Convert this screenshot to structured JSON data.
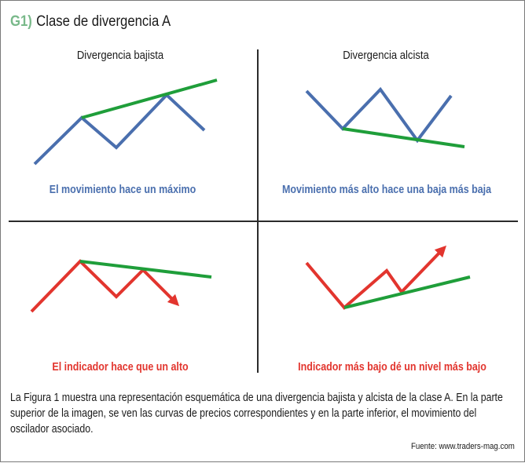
{
  "figure": {
    "number": "G1)",
    "title": "Clase de divergencia A"
  },
  "panels": {
    "bearish_price": {
      "heading": "Divergencia bajista",
      "caption": "El movimiento hace un máximo"
    },
    "bullish_price": {
      "heading": "Divergencia alcista",
      "caption": "Movimiento más alto hace una baja más baja"
    },
    "bearish_indicator": {
      "caption": "El indicador hace que un alto"
    },
    "bullish_indicator": {
      "caption": "Indicador más bajo dé un nivel más bajo"
    }
  },
  "body": "La Figura 1 muestra una representación esquemática de una divergencia bajista y alcista de la clase A. En la parte superior de la imagen, se ven las curvas de precios correspondientes y en la parte inferior, el movimiento del oscilador asociado.",
  "source": "Fuente: www.traders-mag.com",
  "colors": {
    "price_line": "#4a6fae",
    "indicator_line": "#e2352e",
    "trend_line": "#1f9e3a"
  }
}
